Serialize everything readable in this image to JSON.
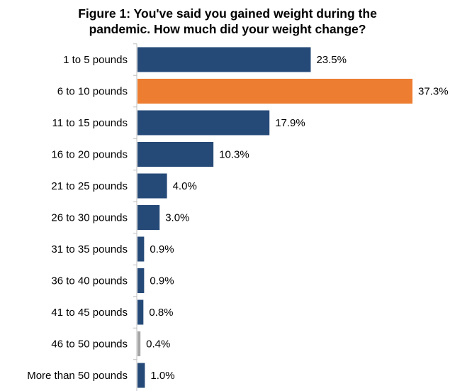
{
  "chart_data": {
    "type": "bar",
    "orientation": "horizontal",
    "title_lines": [
      "Figure 1: You've said you gained weight during the",
      "pandemic. How much did your weight change?"
    ],
    "categories": [
      "1 to 5 pounds",
      "6 to 10 pounds",
      "11 to 15 pounds",
      "16 to 20 pounds",
      "21 to 25 pounds",
      "26 to 30 pounds",
      "31 to 35 pounds",
      "36 to 40 pounds",
      "41 to 45 pounds",
      "46 to 50 pounds",
      "More than 50 pounds"
    ],
    "values": [
      23.5,
      37.3,
      17.9,
      10.3,
      4.0,
      3.0,
      0.9,
      0.9,
      0.8,
      0.4,
      1.0
    ],
    "value_labels": [
      "23.5%",
      "37.3%",
      "17.9%",
      "10.3%",
      "4.0%",
      "3.0%",
      "0.9%",
      "0.9%",
      "0.8%",
      "0.4%",
      "1.0%"
    ],
    "bar_colors": [
      "#264a78",
      "#ed7d31",
      "#264a78",
      "#264a78",
      "#264a78",
      "#264a78",
      "#264a78",
      "#264a78",
      "#264a78",
      "#a6a6a6",
      "#264a78"
    ],
    "xlim": [
      0,
      37.3
    ],
    "grid": false,
    "legend": "none"
  }
}
